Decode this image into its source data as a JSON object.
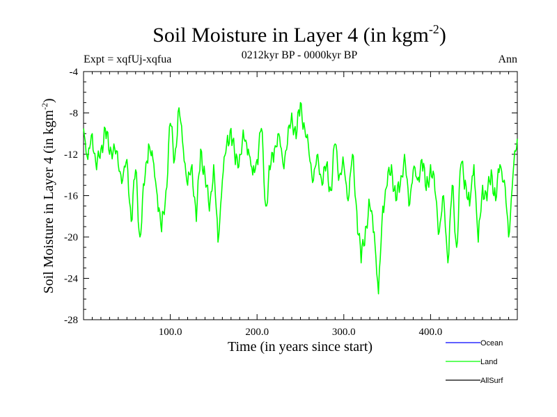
{
  "header": {
    "title_main": "Soil Moisture in Layer 4 (in kgm",
    "title_exp": "-2",
    "title_close": ")",
    "expt": "Expt = xqfUj-xqfua",
    "period": "0212kyr BP - 0000kyr BP",
    "season": "Ann"
  },
  "chart_data": {
    "type": "line",
    "title": "Soil Moisture in Layer 4 (in kgm-2)",
    "xlabel": "Time (in years since start)",
    "ylabel_main": "Soil Moisture in Layer 4 (in kgm",
    "ylabel_exp": "-2",
    "ylabel_close": ")",
    "xlim": [
      0,
      500
    ],
    "ylim": [
      -28,
      -4
    ],
    "x_ticks": [
      100,
      200,
      300,
      400
    ],
    "x_tick_labels": [
      "100.0",
      "200.0",
      "300.0",
      "400.0"
    ],
    "y_ticks": [
      -28,
      -24,
      -20,
      -16,
      -12,
      -8,
      -4
    ],
    "y_tick_labels": [
      "-28",
      "-24",
      "-20",
      "-16",
      "-12",
      "-8",
      "-4"
    ],
    "legend": [
      {
        "name": "Ocean",
        "color": "#0000ff"
      },
      {
        "name": "Land",
        "color": "#00ff00"
      },
      {
        "name": "AllSurf",
        "color": "#000000"
      }
    ],
    "series": [
      {
        "name": "Land",
        "color": "#00ff00",
        "x": [
          0,
          5,
          10,
          15,
          20,
          25,
          30,
          35,
          40,
          45,
          50,
          55,
          60,
          65,
          70,
          75,
          80,
          85,
          90,
          95,
          100,
          105,
          110,
          115,
          120,
          125,
          130,
          135,
          140,
          145,
          150,
          155,
          160,
          165,
          170,
          175,
          180,
          185,
          190,
          195,
          200,
          205,
          210,
          215,
          220,
          225,
          230,
          235,
          240,
          245,
          250,
          255,
          260,
          265,
          270,
          275,
          280,
          285,
          290,
          295,
          300,
          305,
          310,
          315,
          320,
          325,
          330,
          335,
          340,
          345,
          350,
          355,
          360,
          365,
          370,
          375,
          380,
          385,
          390,
          395,
          400,
          405,
          410,
          415,
          420,
          425,
          430,
          435,
          440,
          445,
          450,
          455,
          460,
          465,
          470,
          475,
          480,
          485,
          490,
          495,
          500
        ],
        "values": [
          -9.5,
          -12.5,
          -10,
          -13.5,
          -11.5,
          -9.5,
          -12,
          -11,
          -13,
          -14.5,
          -12.5,
          -18.5,
          -13.5,
          -20,
          -15,
          -11,
          -12.5,
          -16,
          -19.5,
          -15.5,
          -9,
          -12.5,
          -7.5,
          -11.5,
          -15,
          -13,
          -18.5,
          -11.5,
          -14,
          -17.5,
          -13,
          -20.5,
          -14.5,
          -11,
          -9.5,
          -13,
          -12,
          -10.5,
          -11.5,
          -14,
          -12.5,
          -9.5,
          -17,
          -13.5,
          -11.5,
          -10,
          -13,
          -11,
          -8,
          -10.5,
          -7,
          -9.5,
          -12,
          -14.5,
          -12,
          -15,
          -13,
          -15.5,
          -11,
          -14,
          -13,
          -16.5,
          -12,
          -17.5,
          -22.5,
          -19,
          -17,
          -19.5,
          -25.5,
          -17,
          -15,
          -13,
          -16.5,
          -15,
          -12,
          -17,
          -13.5,
          -14.5,
          -12.5,
          -15.5,
          -13,
          -15.5,
          -19.5,
          -16,
          -22.5,
          -15,
          -21,
          -13,
          -14.5,
          -17,
          -13,
          -20.5,
          -15,
          -16.5,
          -13.5,
          -16.5,
          -13,
          -14.5,
          -20,
          -14,
          -10.5
        ]
      }
    ]
  }
}
